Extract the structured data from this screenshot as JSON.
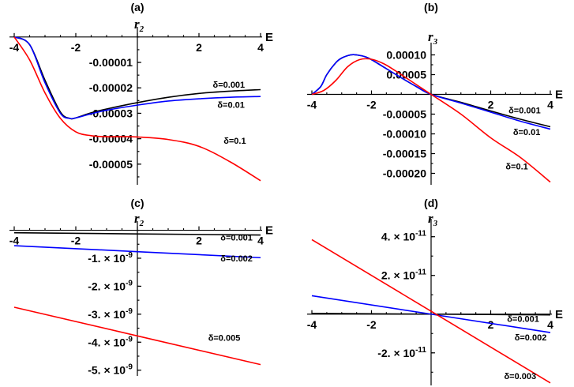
{
  "chart_data": [
    {
      "type": "line",
      "title": "(a)",
      "xlabel": "E",
      "ylabel": "r",
      "ylabel_sub": "2",
      "xlim": [
        -4,
        4
      ],
      "ylim": [
        -5.75e-05,
        1.5e-06
      ],
      "x_ticks": [
        -4,
        -2,
        2,
        4
      ],
      "x_tick_labels": [
        "-4",
        "-2",
        "2",
        "4"
      ],
      "y_ticks": [
        -1e-05,
        -2e-05,
        -3e-05,
        -4e-05,
        -5e-05
      ],
      "y_tick_labels": [
        "-0.00001",
        "-0.00002",
        "-0.00003",
        "-0.00004",
        "-0.00005"
      ],
      "series": [
        {
          "name": "δ=0.001",
          "color": "#000000",
          "x": [
            -4,
            -3.5,
            -3,
            -2.5,
            -2.2,
            -2,
            -1.5,
            -1,
            0,
            1,
            2,
            3,
            4
          ],
          "y": [
            0,
            -3e-06,
            -1.7e-05,
            -2.95e-05,
            -3.2e-05,
            -3.18e-05,
            -2.98e-05,
            -2.83e-05,
            -2.58e-05,
            -2.37e-05,
            -2.22e-05,
            -2.13e-05,
            -2.07e-05
          ]
        },
        {
          "name": "δ=0.01",
          "color": "#0000ff",
          "x": [
            -4,
            -3.5,
            -3,
            -2.5,
            -2.2,
            -2,
            -1.5,
            -1,
            0,
            1,
            2,
            3,
            4
          ],
          "y": [
            0,
            -3e-06,
            -1.8e-05,
            -3e-05,
            -3.2e-05,
            -3.18e-05,
            -3.02e-05,
            -2.88e-05,
            -2.68e-05,
            -2.52e-05,
            -2.43e-05,
            -2.37e-05,
            -2.34e-05
          ]
        },
        {
          "name": "δ=0.1",
          "color": "#ff0000",
          "x": [
            -4,
            -3.5,
            -3,
            -2.5,
            -2,
            -1.5,
            -1,
            -0.5,
            0,
            1,
            2,
            3,
            4
          ],
          "y": [
            0,
            -9e-06,
            -2.2e-05,
            -3.2e-05,
            -3.73e-05,
            -3.88e-05,
            -3.92e-05,
            -3.92e-05,
            -3.93e-05,
            -4.03e-05,
            -4.3e-05,
            -4.9e-05,
            -5.65e-05
          ]
        }
      ],
      "annotations": [
        {
          "text": "δ=0.001",
          "x": 2.45,
          "y": -2e-05
        },
        {
          "text": "δ=0.01",
          "x": 2.6,
          "y": -2.78e-05
        },
        {
          "text": "δ=0.1",
          "x": 2.8,
          "y": -4.2e-05
        }
      ]
    },
    {
      "type": "line",
      "title": "(b)",
      "xlabel": "E",
      "ylabel": "r",
      "ylabel_sub": "3",
      "xlim": [
        -4,
        4
      ],
      "ylim": [
        -0.000225,
        0.000115
      ],
      "x_ticks": [
        -4,
        -2,
        2,
        4
      ],
      "x_tick_labels": [
        "-4",
        "-2",
        "2",
        "4"
      ],
      "y_ticks": [
        0.0001,
        5e-05,
        -5e-05,
        -0.0001,
        -0.00015,
        -0.0002
      ],
      "y_tick_labels": [
        "0.00010",
        "0.00005",
        "-0.00005",
        "-0.00010",
        "-0.00015",
        "-0.00020"
      ],
      "series": [
        {
          "name": "δ=0.001",
          "color": "#000000",
          "x": [
            -4,
            -3.7,
            -3.5,
            -3.2,
            -3,
            -2.7,
            -2.5,
            -2.2,
            -2,
            -1.5,
            -1,
            -0.5,
            0,
            1,
            2,
            3,
            4
          ],
          "y": [
            0,
            2e-05,
            5e-05,
            8e-05,
            9.2e-05,
            0.0001,
            0.0001,
            9.5e-05,
            8.8e-05,
            6.5e-05,
            4.2e-05,
            2e-05,
            0,
            -2e-05,
            -4.2e-05,
            -6.3e-05,
            -8.2e-05
          ]
        },
        {
          "name": "δ=0.01",
          "color": "#0000ff",
          "x": [
            -4,
            -3.7,
            -3.5,
            -3.2,
            -3,
            -2.7,
            -2.5,
            -2.2,
            -2,
            -1.5,
            -1,
            -0.5,
            0,
            1,
            2,
            3,
            4
          ],
          "y": [
            0,
            2e-05,
            5e-05,
            8e-05,
            9.2e-05,
            0.0001,
            0.0001,
            9.5e-05,
            8.8e-05,
            6.5e-05,
            4.2e-05,
            2e-05,
            0,
            -2.2e-05,
            -4.5e-05,
            -6.8e-05,
            -8.8e-05
          ]
        },
        {
          "name": "δ=0.1",
          "color": "#ff0000",
          "x": [
            -4,
            -3.6,
            -3.2,
            -2.8,
            -2.4,
            -2,
            -1.6,
            -1.2,
            -0.8,
            -0.4,
            0,
            1,
            2,
            3,
            4
          ],
          "y": [
            0,
            1e-05,
            3.5e-05,
            7e-05,
            8.8e-05,
            8.9e-05,
            7.8e-05,
            6e-05,
            4e-05,
            2e-05,
            0,
            -5e-05,
            -0.00011,
            -0.00016,
            -0.000222
          ]
        }
      ],
      "annotations": [
        {
          "text": "δ=0.001",
          "x": 2.6,
          "y": -4.8e-05
        },
        {
          "text": "δ=0.01",
          "x": 2.75,
          "y": -0.000103
        },
        {
          "text": "δ=0.1",
          "x": 2.5,
          "y": -0.00019
        }
      ]
    },
    {
      "type": "line",
      "title": "(c)",
      "xlabel": "E",
      "ylabel": "r",
      "ylabel_sub": "2",
      "xlim": [
        -4,
        4
      ],
      "ylim": [
        -5.15e-09,
        1e-10
      ],
      "x_ticks": [
        -4,
        -2,
        2,
        4
      ],
      "x_tick_labels": [
        "-4",
        "-2",
        "2",
        "4"
      ],
      "y_ticks": [
        -1e-09,
        -2e-09,
        -3e-09,
        -4e-09,
        -5e-09
      ],
      "y_tick_labels": [
        "-1.",
        "-2.",
        "-3.",
        "-4.",
        "-5."
      ],
      "y_tick_base": "× 10",
      "y_tick_exp": "-9",
      "series": [
        {
          "name": "δ=0.001",
          "color": "#000000",
          "x": [
            -4,
            4
          ],
          "y": [
            -9e-11,
            -1.7e-10
          ]
        },
        {
          "name": "δ=0.002",
          "color": "#0000ff",
          "x": [
            -4,
            4
          ],
          "y": [
            -5.5e-10,
            -9.8e-10
          ]
        },
        {
          "name": "δ=0.005",
          "color": "#ff0000",
          "x": [
            -4,
            4
          ],
          "y": [
            -2.75e-09,
            -4.8e-09
          ]
        }
      ],
      "annotations": [
        {
          "text": "δ=0.001",
          "x": 2.7,
          "y": -3.7e-10
        },
        {
          "text": "δ=0.002",
          "x": 2.7,
          "y": -1.12e-09
        },
        {
          "text": "δ=0.005",
          "x": 2.3,
          "y": -3.95e-09
        }
      ]
    },
    {
      "type": "line",
      "title": "(d)",
      "xlabel": "E",
      "ylabel": "r",
      "ylabel_sub": "3",
      "xlim": [
        -4,
        4
      ],
      "ylim": [
        -3.6e-11,
        4.6e-11
      ],
      "x_ticks": [
        -4,
        -2,
        2,
        4
      ],
      "x_tick_labels": [
        "-4",
        "-2",
        "2",
        "4"
      ],
      "y_ticks": [
        4e-11,
        2e-11,
        -2e-11
      ],
      "y_tick_labels": [
        "4.",
        "2.",
        "-2."
      ],
      "y_tick_base": "× 10",
      "y_tick_exp": "-11",
      "series": [
        {
          "name": "δ=0.001",
          "color": "#000000",
          "x": [
            -4,
            4
          ],
          "y": [
            4e-13,
            -4e-13
          ]
        },
        {
          "name": "δ=0.002",
          "color": "#0000ff",
          "x": [
            -4,
            4
          ],
          "y": [
            9.5e-12,
            -9.5e-12
          ]
        },
        {
          "name": "δ=0.003",
          "color": "#ff0000",
          "x": [
            -4,
            4
          ],
          "y": [
            3.85e-11,
            -3.55e-11
          ]
        }
      ],
      "annotations": [
        {
          "text": "δ=0.001",
          "x": 2.55,
          "y": -4e-12
        },
        {
          "text": "δ=0.002",
          "x": 2.8,
          "y": -1.35e-11
        },
        {
          "text": "δ=0.003",
          "x": 2.45,
          "y": -3.35e-11
        }
      ]
    }
  ]
}
